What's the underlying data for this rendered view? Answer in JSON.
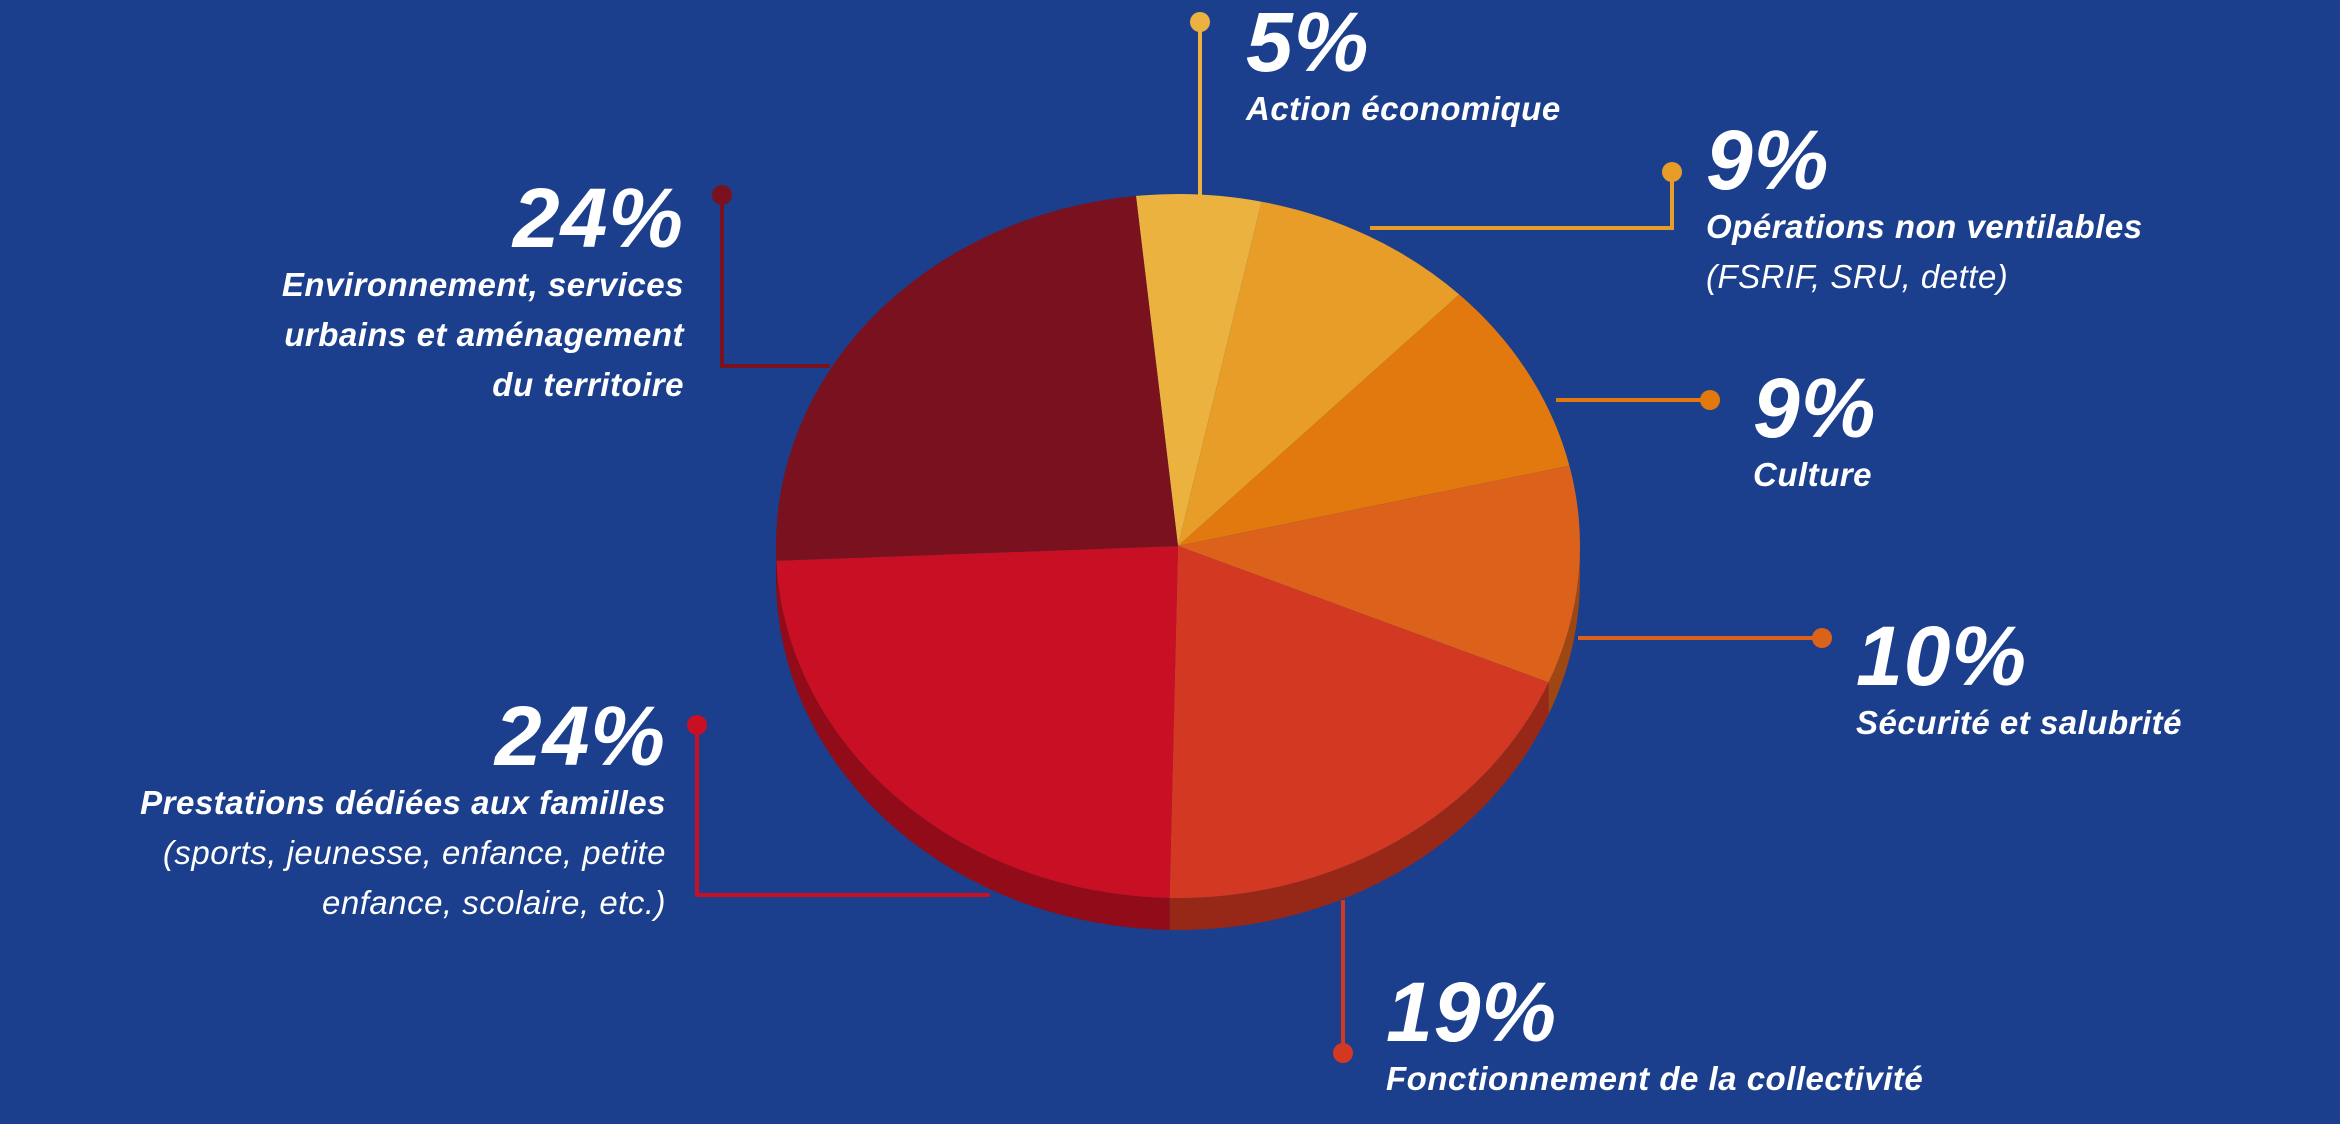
{
  "chart_data": {
    "type": "pie",
    "slices": [
      {
        "id": "action",
        "value": 5,
        "pct_label": "5%",
        "lines": [
          "Action économique"
        ],
        "detail": "",
        "color": "#ecb240"
      },
      {
        "id": "operations",
        "value": 9,
        "pct_label": "9%",
        "lines": [
          "Opérations non ventilables"
        ],
        "detail": "(FSRIF, SRU, dette)",
        "color": "#e79d27"
      },
      {
        "id": "culture",
        "value": 9,
        "pct_label": "9%",
        "lines": [
          "Culture"
        ],
        "detail": "",
        "color": "#e2790e"
      },
      {
        "id": "securite",
        "value": 10,
        "pct_label": "10%",
        "lines": [
          "Sécurité et salubrité"
        ],
        "detail": "",
        "color": "#dc621b"
      },
      {
        "id": "fonctionnement",
        "value": 19,
        "pct_label": "19%",
        "lines": [
          "Fonctionnement de la collectivité"
        ],
        "detail": "",
        "color": "#d23822"
      },
      {
        "id": "prestations",
        "value": 24,
        "pct_label": "24%",
        "lines": [
          "Prestations dédiées aux familles"
        ],
        "detail": "(sports, jeunesse, enfance, petite enfance, scolaire, etc.)",
        "color": "#c90f23"
      },
      {
        "id": "environnement",
        "value": 24,
        "pct_label": "24%",
        "lines": [
          "Environnement, services",
          "urbains et aménagement",
          "du territoire"
        ],
        "detail": "",
        "color": "#79121e"
      }
    ],
    "detail_lines": {
      "prestations": [
        "(sports, jeunesse, enfance, petite",
        "enfance, scolaire, etc.)"
      ]
    },
    "background_color": "#1b3e8d"
  }
}
